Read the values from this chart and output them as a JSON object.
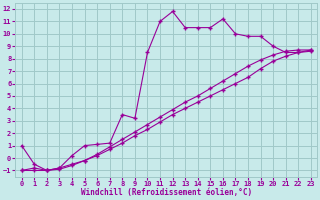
{
  "xlabel": "Windchill (Refroidissement éolien,°C)",
  "bg_color": "#c8eaea",
  "grid_color": "#a0c8c8",
  "line_color": "#990099",
  "xlim": [
    -0.5,
    23.5
  ],
  "ylim": [
    -1.5,
    12.5
  ],
  "xticks": [
    0,
    1,
    2,
    3,
    4,
    5,
    6,
    7,
    8,
    9,
    10,
    11,
    12,
    13,
    14,
    15,
    16,
    17,
    18,
    19,
    20,
    21,
    22,
    23
  ],
  "yticks": [
    -1,
    0,
    1,
    2,
    3,
    4,
    5,
    6,
    7,
    8,
    9,
    10,
    11,
    12
  ],
  "line1_x": [
    0,
    1,
    2,
    3,
    4,
    5,
    6,
    7,
    8,
    9,
    10,
    11,
    12,
    13,
    14,
    15,
    16,
    17,
    18,
    19,
    20,
    21,
    22,
    23
  ],
  "line1_y": [
    1.0,
    -0.5,
    -1.0,
    -0.8,
    0.2,
    1.0,
    1.1,
    1.2,
    3.5,
    3.2,
    8.5,
    11.0,
    11.8,
    10.5,
    10.5,
    10.5,
    11.2,
    10.0,
    9.8,
    9.8,
    9.0,
    8.5,
    8.5,
    8.7
  ],
  "line2_x": [
    0,
    1,
    2,
    3,
    4,
    5,
    6,
    7,
    8,
    9,
    10,
    11,
    12,
    13,
    14,
    15,
    16,
    17,
    18,
    19,
    20,
    21,
    22,
    23
  ],
  "line2_y": [
    -1.0,
    -0.8,
    -1.0,
    -0.8,
    -0.5,
    -0.2,
    0.2,
    0.7,
    1.2,
    1.8,
    2.3,
    2.9,
    3.5,
    4.0,
    4.5,
    5.0,
    5.5,
    6.0,
    6.5,
    7.2,
    7.8,
    8.2,
    8.5,
    8.6
  ],
  "line3_x": [
    0,
    1,
    2,
    3,
    4,
    5,
    6,
    7,
    8,
    9,
    10,
    11,
    12,
    13,
    14,
    15,
    16,
    17,
    18,
    19,
    20,
    21,
    22,
    23
  ],
  "line3_y": [
    -1.0,
    -1.0,
    -1.0,
    -0.9,
    -0.6,
    -0.2,
    0.3,
    0.9,
    1.5,
    2.1,
    2.7,
    3.3,
    3.9,
    4.5,
    5.0,
    5.6,
    6.2,
    6.8,
    7.4,
    7.9,
    8.3,
    8.6,
    8.7,
    8.7
  ],
  "tick_fontsize": 5,
  "xlabel_fontsize": 5.5
}
